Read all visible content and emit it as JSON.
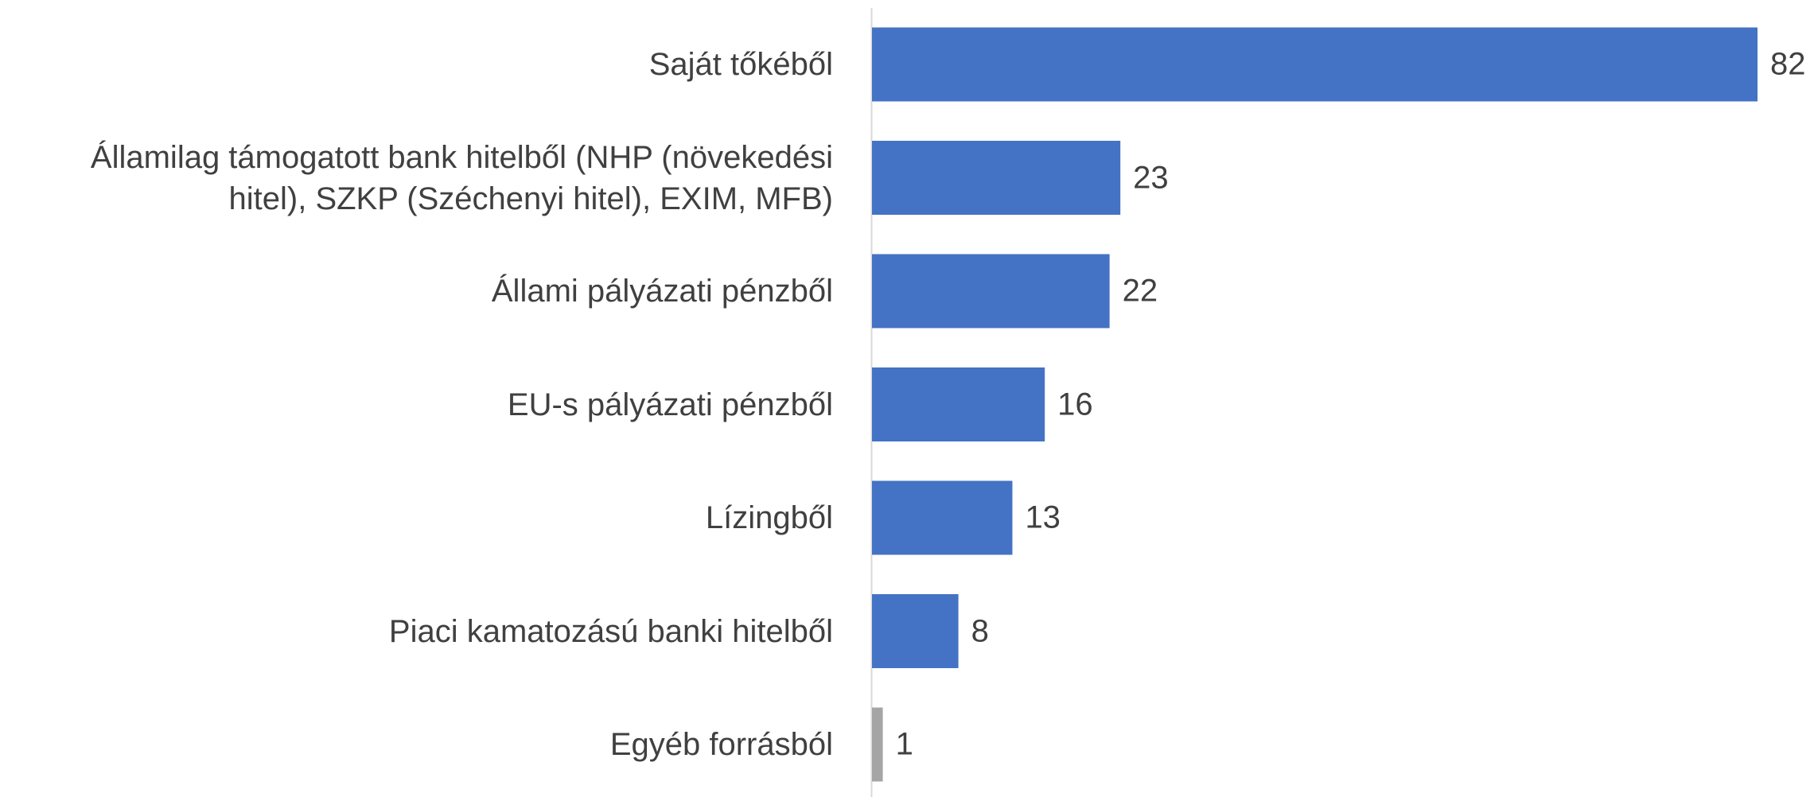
{
  "chart_data": {
    "type": "bar",
    "orientation": "horizontal",
    "categories": [
      "Saját tőkéből",
      "Államilag támogatott bank hitelből (NHP (növekedési hitel), SZKP (Széchenyi hitel), EXIM, MFB)",
      "Állami pályázati pénzből",
      "EU-s pályázati pénzből",
      "Lízingből",
      "Piaci kamatozású banki hitelből",
      "Egyéb forrásból"
    ],
    "values": [
      82,
      23,
      22,
      16,
      13,
      8,
      1
    ],
    "colors": [
      "#4472c4",
      "#4472c4",
      "#4472c4",
      "#4472c4",
      "#4472c4",
      "#4472c4",
      "#a5a5a5"
    ]
  }
}
